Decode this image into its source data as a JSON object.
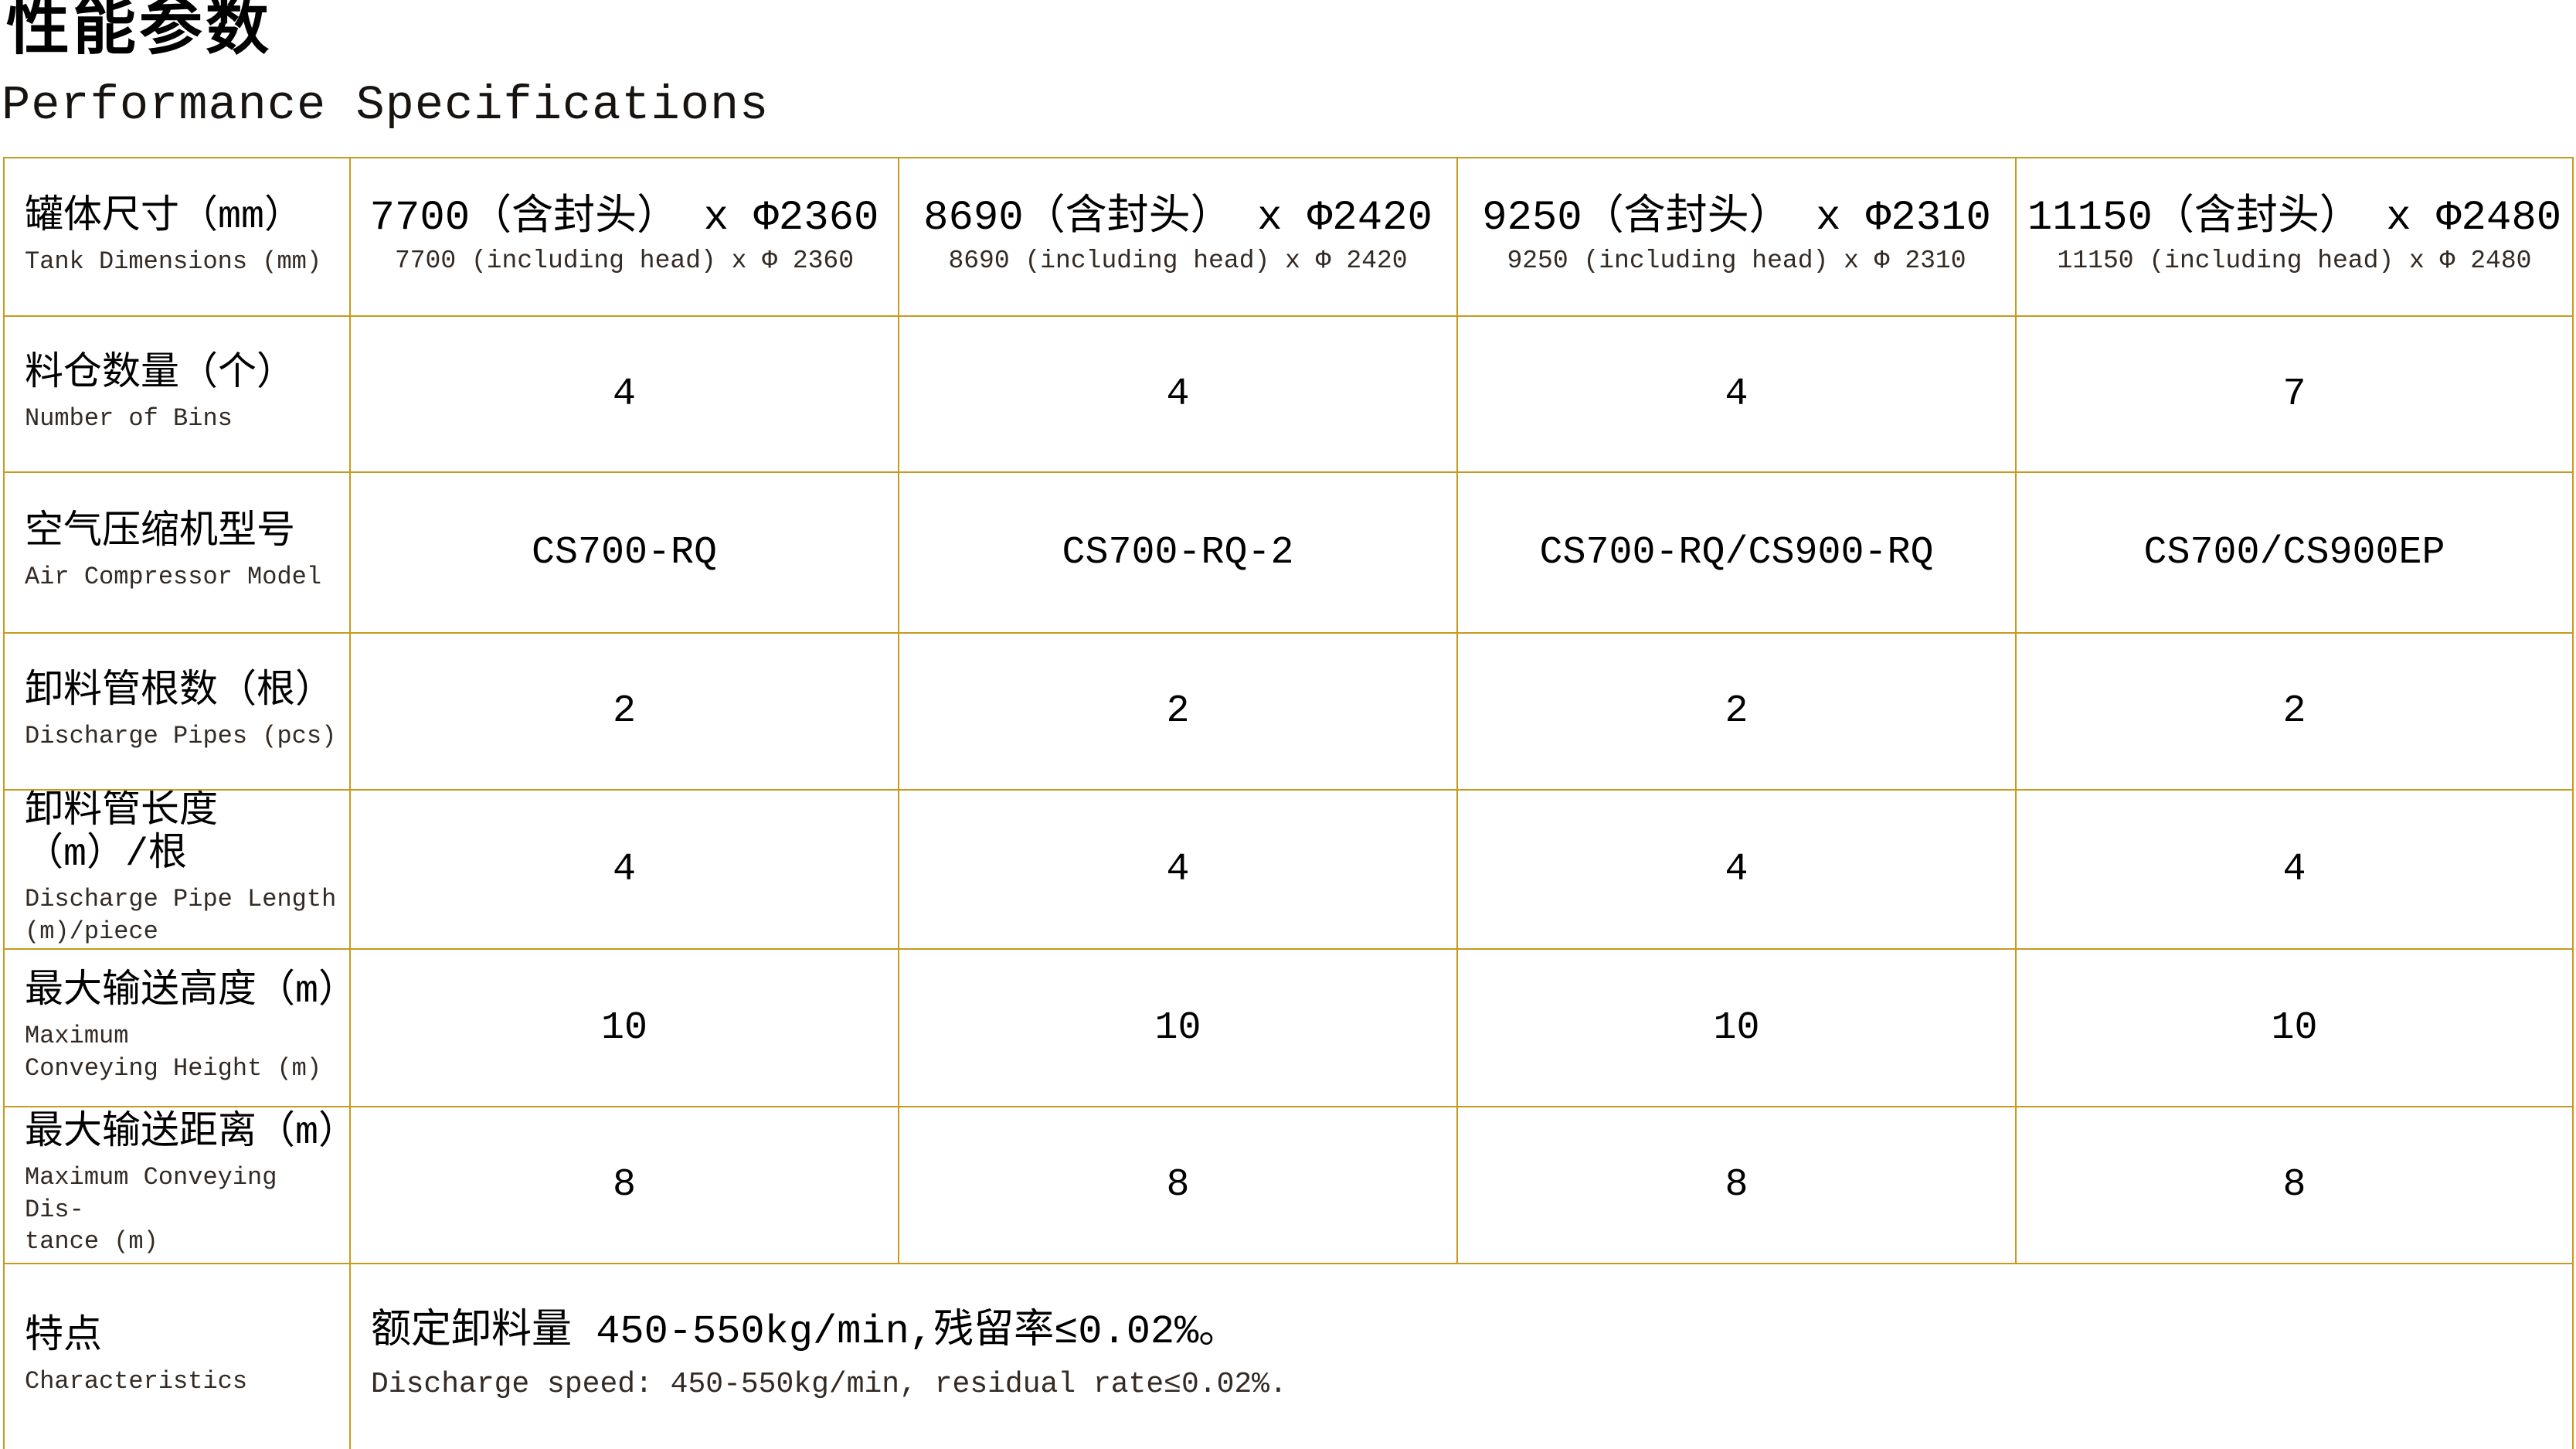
{
  "header": {
    "title_cn": "性能参数",
    "title_en": "Performance Specifications"
  },
  "colors": {
    "border": "#c79a1e",
    "text": "#000000",
    "background": "#ffffff"
  },
  "table": {
    "rows": [
      {
        "label_cn": "罐体尺寸（mm）",
        "label_en": "Tank Dimensions (mm)",
        "cells": [
          {
            "cn": "7700（含封头） x Φ2360",
            "en": "7700 (including head) x Φ 2360"
          },
          {
            "cn": "8690（含封头） x Φ2420",
            "en": "8690 (including head) x Φ 2420"
          },
          {
            "cn": "9250（含封头） x Φ2310",
            "en": "9250 (including head) x Φ 2310"
          },
          {
            "cn": "11150（含封头） x Φ2480",
            "en": "11150 (including head) x Φ 2480"
          }
        ]
      },
      {
        "label_cn": "料仓数量（个）",
        "label_en": "Number of Bins",
        "values": [
          "4",
          "4",
          "4",
          "7"
        ]
      },
      {
        "label_cn": "空气压缩机型号",
        "label_en": "Air Compressor Model",
        "values": [
          "CS700-RQ",
          "CS700-RQ-2",
          "CS700-RQ/CS900-RQ",
          "CS700/CS900EP"
        ]
      },
      {
        "label_cn": "卸料管根数（根）",
        "label_en": "Discharge Pipes (pcs)",
        "values": [
          "2",
          "2",
          "2",
          "2"
        ]
      },
      {
        "label_cn": "卸料管长度（m）/根",
        "label_en": "Discharge Pipe Length\n(m)/piece",
        "values": [
          "4",
          "4",
          "4",
          "4"
        ]
      },
      {
        "label_cn": "最大输送高度（m）",
        "label_en": "Maximum\nConveying Height (m)",
        "values": [
          "10",
          "10",
          "10",
          "10"
        ]
      },
      {
        "label_cn": "最大输送距离（m）",
        "label_en": "Maximum Conveying Dis-\ntance (m)",
        "values": [
          "8",
          "8",
          "8",
          "8"
        ]
      },
      {
        "label_cn": "特点",
        "label_en": "Characteristics",
        "merged_cn": "额定卸料量 450-550kg/min,残留率≤0.02%。",
        "merged_en": "Discharge speed: 450-550kg/min, residual rate≤0.02%."
      }
    ]
  }
}
